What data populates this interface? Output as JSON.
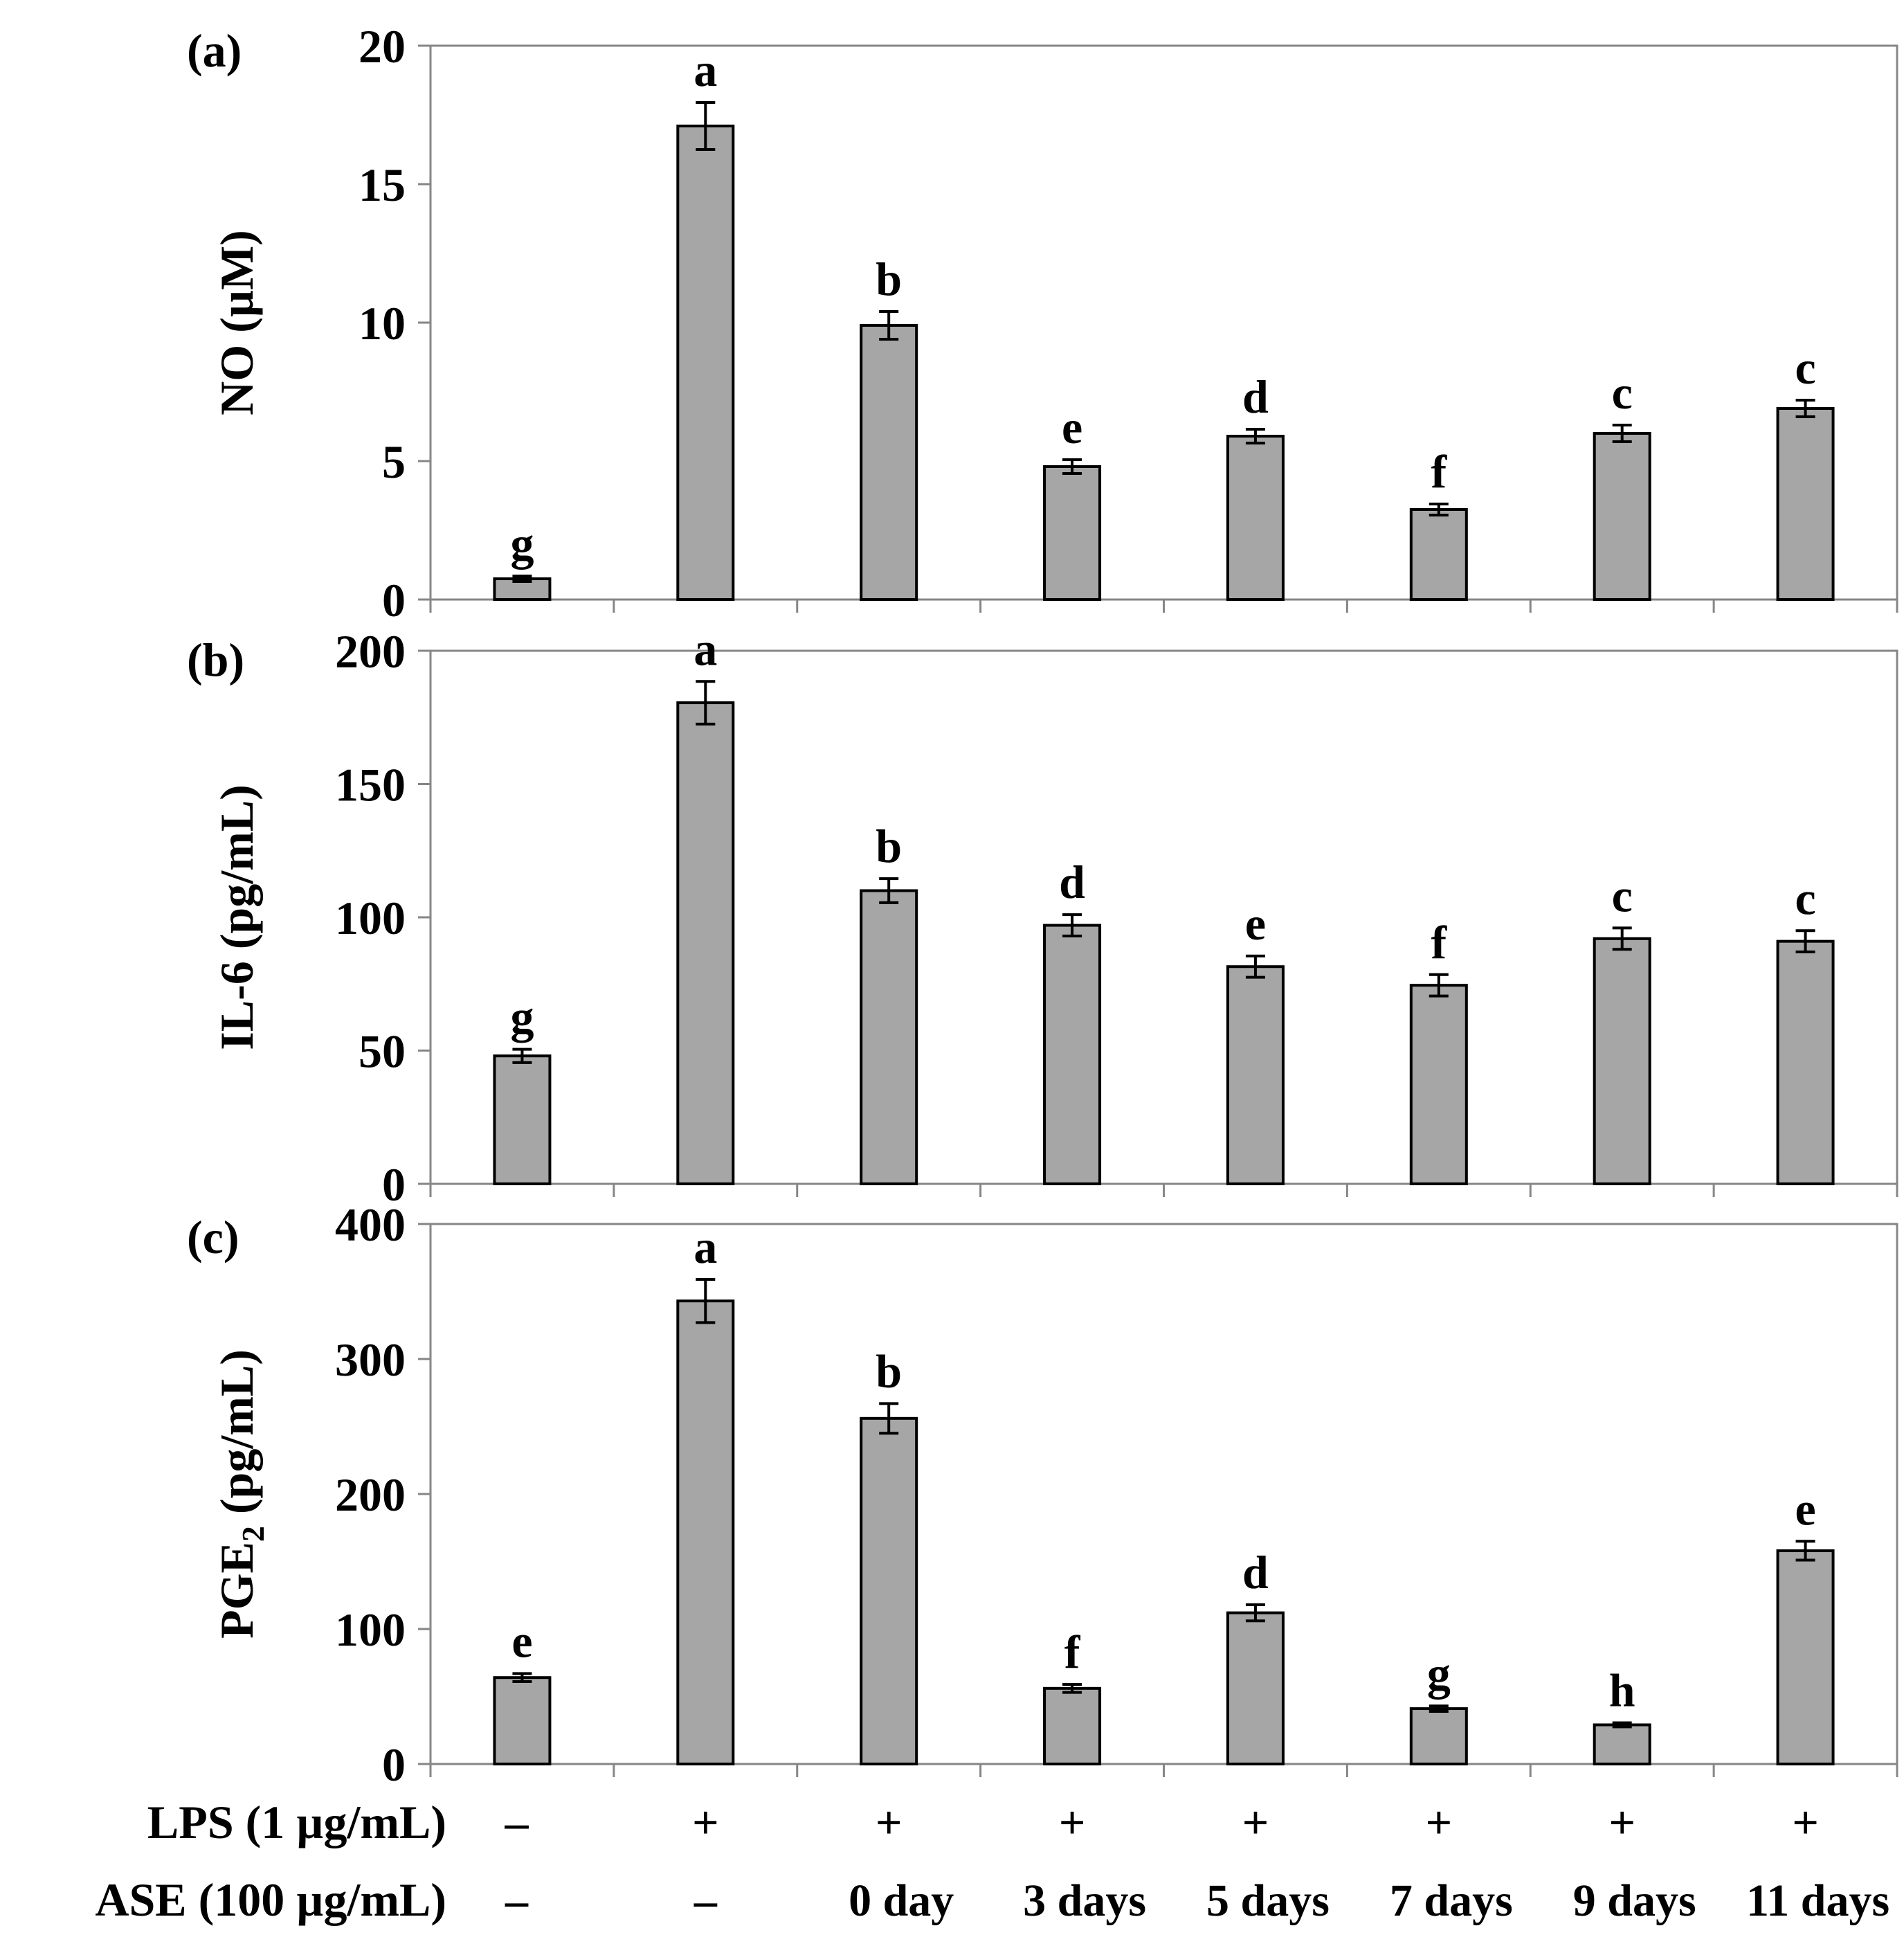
{
  "chart_data": [
    {
      "type": "bar",
      "panel_label": "(a)",
      "ylabel": "NO (µM)",
      "ylim": [
        0,
        20
      ],
      "yticks": [
        "0",
        "5",
        "10",
        "15",
        "20"
      ],
      "values": [
        0.75,
        17.1,
        9.9,
        4.8,
        5.9,
        3.25,
        6.0,
        6.9
      ],
      "errors": [
        0.1,
        0.85,
        0.5,
        0.25,
        0.25,
        0.2,
        0.3,
        0.3
      ],
      "letters": [
        "g",
        "a",
        "b",
        "e",
        "d",
        "f",
        "c",
        "c"
      ]
    },
    {
      "type": "bar",
      "panel_label": "(b)",
      "ylabel": "IL-6 (pg/mL)",
      "ylim": [
        0,
        200
      ],
      "yticks": [
        "0",
        "50",
        "100",
        "150",
        "200"
      ],
      "values": [
        48,
        180.5,
        110,
        97,
        81.5,
        74.5,
        92,
        91
      ],
      "errors": [
        2.5,
        8,
        4.5,
        4,
        4,
        4,
        4,
        4
      ],
      "letters": [
        "g",
        "a",
        "b",
        "d",
        "e",
        "f",
        "c",
        "c"
      ]
    },
    {
      "type": "bar",
      "panel_label": "(c)",
      "ylabel": "PGE",
      "ylabel_sub": "2",
      "ylabel_tail": " (pg/mL)",
      "ylim": [
        0,
        400
      ],
      "yticks": [
        "0",
        "100",
        "200",
        "300",
        "400"
      ],
      "values": [
        64,
        343,
        256,
        56,
        112,
        41,
        29,
        158
      ],
      "errors": [
        3,
        16,
        11,
        3,
        6,
        2,
        1.5,
        7
      ],
      "letters": [
        "e",
        "a",
        "b",
        "f",
        "d",
        "g",
        "h",
        "e"
      ]
    }
  ],
  "treatments": {
    "lps_label": "LPS (1 µg/mL)",
    "ase_label": "ASE (100 µg/mL)",
    "lps_values": [
      "–",
      "+",
      "+",
      "+",
      "+",
      "+",
      "+",
      "+"
    ],
    "ase_values": [
      "–",
      "–",
      "0 day",
      "3 days",
      "5 days",
      "7 days",
      "9 days",
      "11 days"
    ]
  }
}
